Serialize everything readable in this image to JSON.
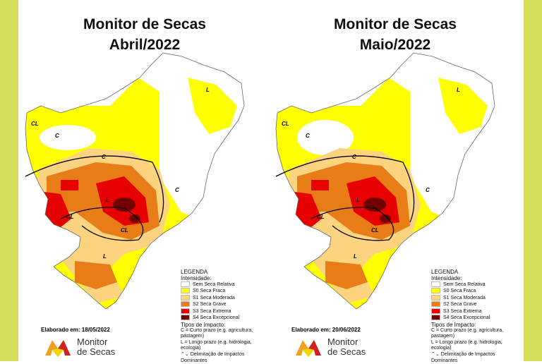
{
  "colors": {
    "side": "#d6dc5c",
    "none": "#ffffff",
    "s0": "#ffff00",
    "s1": "#fcd37f",
    "s2": "#e87c17",
    "s3": "#e60000",
    "s4": "#730000"
  },
  "panels": [
    {
      "title_line1": "Monitor de Secas",
      "title_line2": "Abril/2022",
      "date": "Elaborado em: 18/05/2022"
    },
    {
      "title_line1": "Monitor de Secas",
      "title_line2": "Maio/2022",
      "date": "Elaborado em: 20/06/2022"
    }
  ],
  "legend": {
    "title": "LEGENDA",
    "intensity_title": "Intensidade:",
    "items": [
      {
        "label": "Sem Seca Relativa",
        "color": "#ffffff"
      },
      {
        "label": "S0 Seca Fraca",
        "color": "#ffff00"
      },
      {
        "label": "S1 Seca Moderada",
        "color": "#fcd37f"
      },
      {
        "label": "S2 Seca Grave",
        "color": "#e87c17"
      },
      {
        "label": "S3 Seca Extrema",
        "color": "#e60000"
      },
      {
        "label": "S4 Seca Excepcional",
        "color": "#730000"
      }
    ],
    "impact_title": "Tipos de Impacto:",
    "impact_c": "C = Curto prazo (e.g. agricultura, pastagem)",
    "impact_l": "L = Longo prazo (e.g. hidrologia, ecologia)",
    "impact_line": "Delimitação de Impactos Dominantes"
  },
  "map_labels": {
    "c": "C",
    "l": "L",
    "cl": "CL"
  },
  "logo": {
    "line1": "Monitor",
    "line2": "de Secas"
  }
}
